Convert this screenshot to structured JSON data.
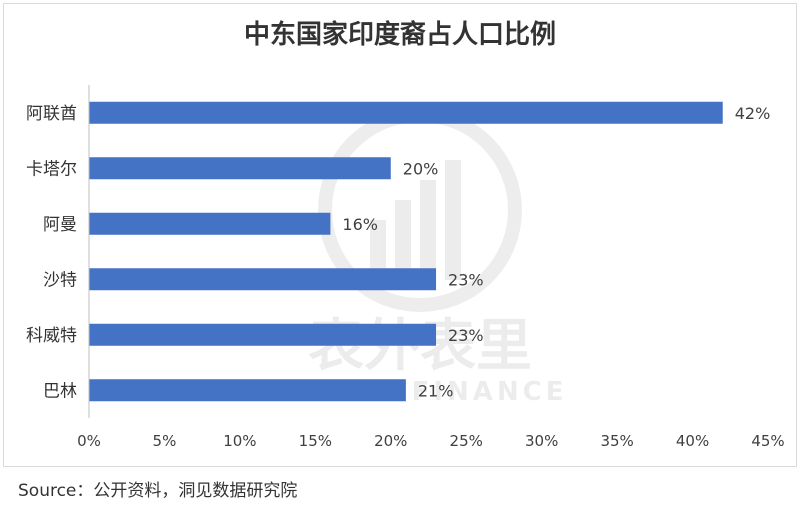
{
  "title": "中东国家印度裔占人口比例",
  "source": "Source：公开资料，洞见数据研究院",
  "watermark": {
    "text_cn": "表外表里",
    "text_en": "VISION FINANCE"
  },
  "colors": {
    "bar": "#4472c4",
    "axis": "#bfbfbf",
    "text": "#404040"
  },
  "chart_data": {
    "type": "bar",
    "orientation": "horizontal",
    "categories": [
      "阿联酋",
      "卡塔尔",
      "阿曼",
      "沙特",
      "科威特",
      "巴林"
    ],
    "values": [
      42,
      20,
      16,
      23,
      23,
      21
    ],
    "data_labels": [
      "42%",
      "20%",
      "16%",
      "23%",
      "23%",
      "21%"
    ],
    "x_ticks": [
      "0%",
      "5%",
      "10%",
      "15%",
      "20%",
      "25%",
      "30%",
      "35%",
      "40%",
      "45%"
    ],
    "xlim": [
      0,
      45
    ],
    "grid": false,
    "legend": "none"
  }
}
